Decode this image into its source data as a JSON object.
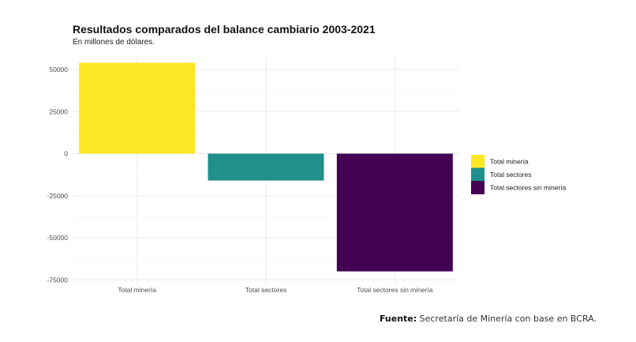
{
  "chart_data": {
    "type": "bar",
    "title": "Resultados comparados del balance cambiario 2003-2021",
    "subtitle": "En millones de dólares.",
    "categories": [
      "Total minería",
      "Total sectores",
      "Total sectores sin minería"
    ],
    "values": [
      54000,
      -16000,
      -70000
    ],
    "colors": [
      "#FDE725",
      "#21908C",
      "#440154"
    ],
    "ylim": [
      -76000,
      55000
    ],
    "yticks": [
      50000,
      25000,
      0,
      -25000,
      -50000,
      -75000
    ],
    "ytick_labels": [
      "50000",
      "25000",
      "0",
      "-25000",
      "-50000",
      "-75000"
    ],
    "xlabel": "",
    "ylabel": "",
    "grid": true,
    "legend": {
      "position": "right",
      "entries": [
        "Total minería",
        "Total sectores",
        "Total sectores sin minería"
      ]
    }
  },
  "source": {
    "label": "Fuente:",
    "text": " Secretaría de Minería con base en BCRA."
  }
}
